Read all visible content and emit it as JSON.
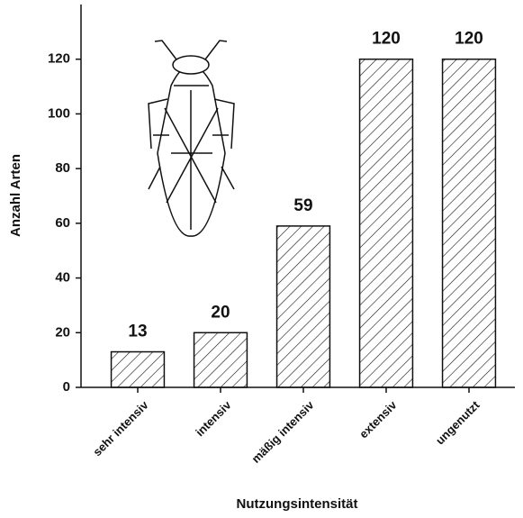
{
  "chart_data": {
    "type": "bar",
    "x_label": "Nutzungsintensität",
    "y_label": "Anzahl Arten",
    "categories": [
      "sehr intensiv",
      "intensiv",
      "mäßig intensiv",
      "extensiv",
      "ungenutzt"
    ],
    "values": [
      13,
      20,
      59,
      120,
      120
    ],
    "color": "#111111",
    "ylim": [
      0,
      140
    ],
    "yticks": [
      0,
      20,
      40,
      60,
      80,
      100,
      120
    ]
  }
}
